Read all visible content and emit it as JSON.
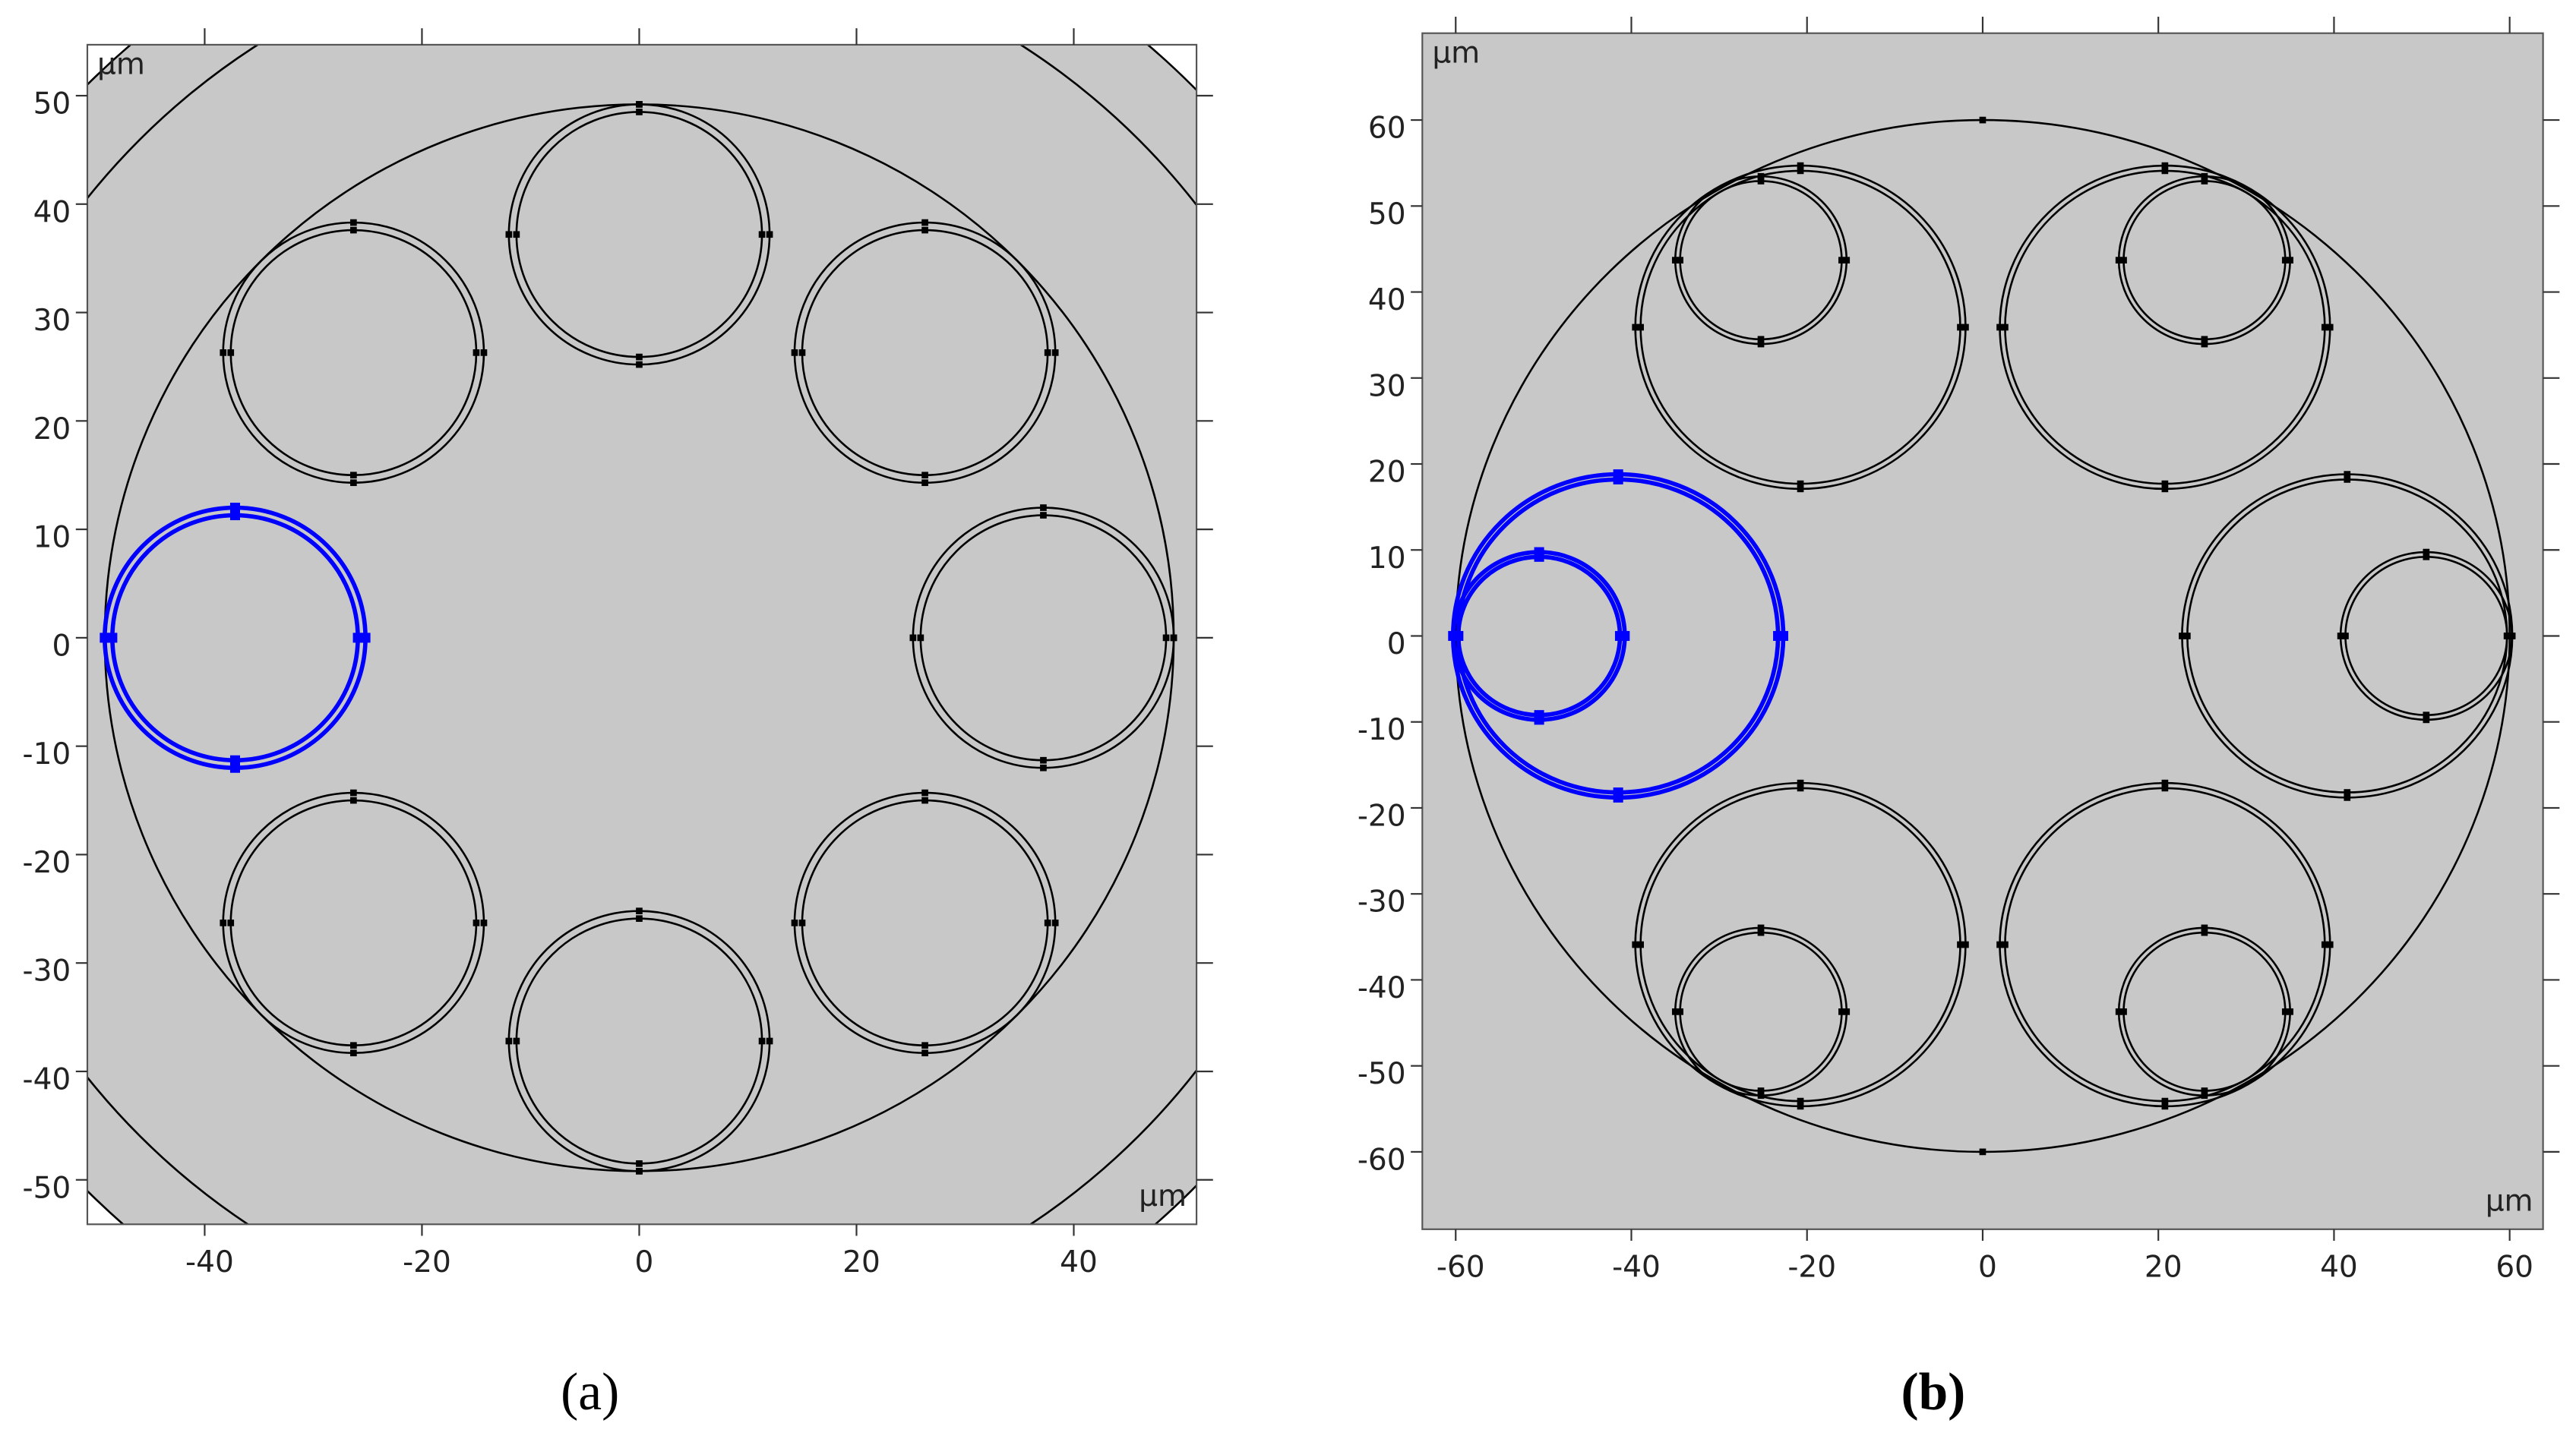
{
  "chart_data": [
    {
      "type": "geometry",
      "label": "(a)",
      "unit": "μm",
      "background": "#ffffff",
      "xlim": [
        -50.8,
        51.3
      ],
      "ylim": [
        -54.1,
        54.7
      ],
      "xticks": [
        -40,
        -20,
        0,
        20,
        40
      ],
      "yticks": [
        -50,
        -40,
        -30,
        -20,
        -10,
        0,
        10,
        20,
        30,
        40,
        50
      ],
      "circles": [
        {
          "cx": 0,
          "cy": 0,
          "r": 72,
          "color": "#000000",
          "fill": "#c8c8c8"
        },
        {
          "cx": 0,
          "cy": 0,
          "r": 65,
          "color": "#000000"
        },
        {
          "cx": 0,
          "cy": 0,
          "r": 49.2,
          "color": "#000000"
        },
        {
          "cx": 0,
          "cy": 37.2,
          "r": 12,
          "color": "#000000"
        },
        {
          "cx": 0,
          "cy": 37.2,
          "r": 11.3,
          "color": "#000000"
        },
        {
          "cx": 26.3,
          "cy": 26.3,
          "r": 12,
          "color": "#000000"
        },
        {
          "cx": 26.3,
          "cy": 26.3,
          "r": 11.3,
          "color": "#000000"
        },
        {
          "cx": 37.2,
          "cy": 0,
          "r": 12,
          "color": "#000000"
        },
        {
          "cx": 37.2,
          "cy": 0,
          "r": 11.3,
          "color": "#000000"
        },
        {
          "cx": 26.3,
          "cy": -26.3,
          "r": 12,
          "color": "#000000"
        },
        {
          "cx": 26.3,
          "cy": -26.3,
          "r": 11.3,
          "color": "#000000"
        },
        {
          "cx": 0,
          "cy": -37.2,
          "r": 12,
          "color": "#000000"
        },
        {
          "cx": 0,
          "cy": -37.2,
          "r": 11.3,
          "color": "#000000"
        },
        {
          "cx": -26.3,
          "cy": -26.3,
          "r": 12,
          "color": "#000000"
        },
        {
          "cx": -26.3,
          "cy": -26.3,
          "r": 11.3,
          "color": "#000000"
        },
        {
          "cx": -37.2,
          "cy": 0,
          "r": 12,
          "color": "#0000ff"
        },
        {
          "cx": -37.2,
          "cy": 0,
          "r": 11.3,
          "color": "#0000ff"
        },
        {
          "cx": -26.3,
          "cy": 26.3,
          "r": 12,
          "color": "#000000"
        },
        {
          "cx": -26.3,
          "cy": 26.3,
          "r": 11.3,
          "color": "#000000"
        }
      ]
    },
    {
      "type": "geometry",
      "label": "(b)",
      "unit": "μm",
      "background": "#c8c8c8",
      "xlim": [
        -63.8,
        63.8
      ],
      "ylim": [
        -69,
        70.1
      ],
      "xticks": [
        -60,
        -40,
        -20,
        0,
        20,
        40,
        60
      ],
      "yticks": [
        -60,
        -50,
        -40,
        -30,
        -20,
        -10,
        0,
        10,
        20,
        30,
        40,
        50,
        60
      ],
      "circles": [
        {
          "cx": 0,
          "cy": 0,
          "r": 60,
          "color": "#000000"
        },
        {
          "cx": -41.5,
          "cy": 0,
          "r": 18.8,
          "color": "#0000ff"
        },
        {
          "cx": -41.5,
          "cy": 0,
          "r": 18.2,
          "color": "#0000ff"
        },
        {
          "cx": -50.5,
          "cy": 0,
          "r": 9.75,
          "color": "#0000ff"
        },
        {
          "cx": -50.5,
          "cy": 0,
          "r": 9.2,
          "color": "#0000ff"
        },
        {
          "cx": -20.75,
          "cy": 35.9,
          "r": 18.8,
          "color": "#000000"
        },
        {
          "cx": -20.75,
          "cy": 35.9,
          "r": 18.2,
          "color": "#000000"
        },
        {
          "cx": -25.25,
          "cy": 43.7,
          "r": 9.75,
          "color": "#000000"
        },
        {
          "cx": -25.25,
          "cy": 43.7,
          "r": 9.2,
          "color": "#000000"
        },
        {
          "cx": 20.75,
          "cy": 35.9,
          "r": 18.8,
          "color": "#000000"
        },
        {
          "cx": 20.75,
          "cy": 35.9,
          "r": 18.2,
          "color": "#000000"
        },
        {
          "cx": 25.25,
          "cy": 43.7,
          "r": 9.75,
          "color": "#000000"
        },
        {
          "cx": 25.25,
          "cy": 43.7,
          "r": 9.2,
          "color": "#000000"
        },
        {
          "cx": 41.5,
          "cy": 0,
          "r": 18.8,
          "color": "#000000"
        },
        {
          "cx": 41.5,
          "cy": 0,
          "r": 18.2,
          "color": "#000000"
        },
        {
          "cx": 50.5,
          "cy": 0,
          "r": 9.75,
          "color": "#000000"
        },
        {
          "cx": 50.5,
          "cy": 0,
          "r": 9.2,
          "color": "#000000"
        },
        {
          "cx": 20.75,
          "cy": -35.9,
          "r": 18.8,
          "color": "#000000"
        },
        {
          "cx": 20.75,
          "cy": -35.9,
          "r": 18.2,
          "color": "#000000"
        },
        {
          "cx": 25.25,
          "cy": -43.7,
          "r": 9.75,
          "color": "#000000"
        },
        {
          "cx": 25.25,
          "cy": -43.7,
          "r": 9.2,
          "color": "#000000"
        },
        {
          "cx": -20.75,
          "cy": -35.9,
          "r": 18.8,
          "color": "#000000"
        },
        {
          "cx": -20.75,
          "cy": -35.9,
          "r": 18.2,
          "color": "#000000"
        },
        {
          "cx": -25.25,
          "cy": -43.7,
          "r": 9.75,
          "color": "#000000"
        },
        {
          "cx": -25.25,
          "cy": -43.7,
          "r": 9.2,
          "color": "#000000"
        }
      ]
    }
  ]
}
